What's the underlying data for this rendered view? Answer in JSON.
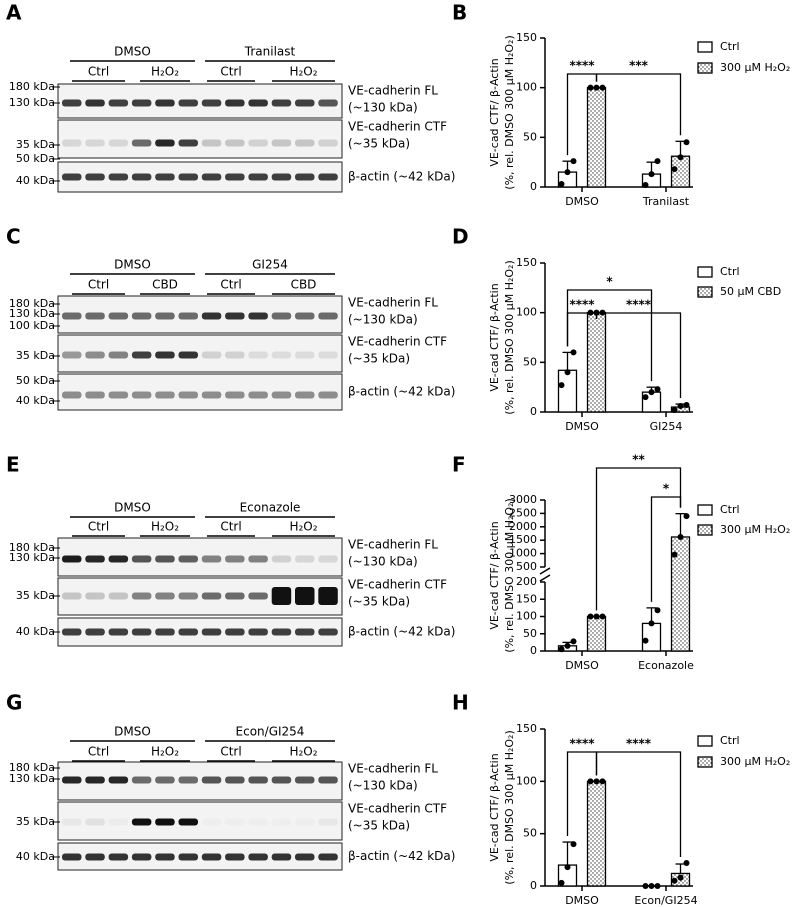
{
  "blots": [
    {
      "panel": "A",
      "groups": [
        "DMSO",
        "Tranilast"
      ],
      "subgroups": [
        "Ctrl",
        "H₂O₂",
        "Ctrl",
        "H₂O₂"
      ],
      "markers": [
        "180 kDa",
        "130 kDa",
        "35 kDa",
        "50 kDa",
        "40 kDa"
      ],
      "bands": [
        "VE-cadherin FL",
        "(~130 kDa)",
        "VE-cadherin CTF",
        "(~35 kDa)",
        "β-actin (~42 kDa)"
      ]
    },
    {
      "panel": "C",
      "groups": [
        "DMSO",
        "GI254"
      ],
      "subgroups": [
        "Ctrl",
        "CBD",
        "Ctrl",
        "CBD"
      ],
      "markers": [
        "180 kDa",
        "130 kDa",
        "100 kDa",
        "35 kDa",
        "50 kDa",
        "40 kDa"
      ],
      "bands": [
        "VE-cadherin FL",
        "(~130 kDa)",
        "VE-cadherin CTF",
        "(~35 kDa)",
        "β-actin (~42 kDa)"
      ]
    },
    {
      "panel": "E",
      "groups": [
        "DMSO",
        "Econazole"
      ],
      "subgroups": [
        "Ctrl",
        "H₂O₂",
        "Ctrl",
        "H₂O₂"
      ],
      "markers": [
        "180 kDa",
        "130 kDa",
        "35 kDa",
        "40 kDa"
      ],
      "bands": [
        "VE-cadherin FL",
        "(~130 kDa)",
        "VE-cadherin CTF",
        "(~35 kDa)",
        "β-actin (~42 kDa)"
      ]
    },
    {
      "panel": "G",
      "groups": [
        "DMSO",
        "Econ/GI254"
      ],
      "subgroups": [
        "Ctrl",
        "H₂O₂",
        "Ctrl",
        "H₂O₂"
      ],
      "markers": [
        "180 kDa",
        "130 kDa",
        "35 kDa",
        "40 kDa"
      ],
      "bands": [
        "VE-cadherin FL",
        "(~130 kDa)",
        "VE-cadherin CTF",
        "(~35 kDa)",
        "β-actin (~42 kDa)"
      ]
    }
  ],
  "chart_data": [
    {
      "type": "bar",
      "panel": "B",
      "y_label": [
        "VE-cad CTF/ β-Actin",
        "(%, rel. DMSO 300 μM H₂O₂)"
      ],
      "categories": [
        "DMSO",
        "Tranilast"
      ],
      "ylim": [
        0,
        150
      ],
      "yticks": [
        0,
        50,
        100,
        150
      ],
      "legend": "right",
      "series": [
        {
          "name": "Ctrl",
          "color": "#ffffff",
          "values": [
            15,
            13
          ],
          "errors": [
            11,
            12
          ],
          "points": [
            [
              3,
              15,
              26
            ],
            [
              2,
              13,
              26
            ]
          ]
        },
        {
          "name": "300 μM H₂O₂",
          "color": "#ffffff",
          "hatch": "dots",
          "values": [
            100,
            31
          ],
          "errors": [
            0,
            15
          ],
          "points": [
            [
              100,
              100,
              100
            ],
            [
              18,
              30,
              45
            ]
          ]
        }
      ],
      "annotations": [
        {
          "text": "****",
          "from": [
            0,
            0
          ],
          "to": [
            0,
            1
          ]
        },
        {
          "text": "***",
          "from": [
            0,
            1
          ],
          "to": [
            1,
            1
          ]
        }
      ]
    },
    {
      "type": "bar",
      "panel": "D",
      "y_label": [
        "VE-cad CTF/ β-Actin",
        "(%, rel. DMSO 300 μM H₂O₂)"
      ],
      "categories": [
        "DMSO",
        "GI254"
      ],
      "ylim": [
        0,
        150
      ],
      "yticks": [
        0,
        50,
        100,
        150
      ],
      "legend": "right",
      "series": [
        {
          "name": "Ctrl",
          "color": "#ffffff",
          "values": [
            42,
            20
          ],
          "errors": [
            18,
            5
          ],
          "points": [
            [
              27,
              40,
              60
            ],
            [
              15,
              20,
              23
            ]
          ]
        },
        {
          "name": "50 μM CBD",
          "color": "#ffffff",
          "hatch": "dots",
          "values": [
            100,
            5
          ],
          "errors": [
            0,
            3
          ],
          "points": [
            [
              100,
              100,
              100
            ],
            [
              2,
              6,
              7
            ]
          ]
        }
      ],
      "annotations": [
        {
          "text": "*",
          "from": [
            0,
            0
          ],
          "to": [
            1,
            0
          ]
        },
        {
          "text": "****",
          "from": [
            0,
            0
          ],
          "to": [
            0,
            1
          ]
        },
        {
          "text": "****",
          "from": [
            0,
            1
          ],
          "to": [
            1,
            1
          ]
        }
      ]
    },
    {
      "type": "bar",
      "panel": "F",
      "y_label": [
        "VE-cad CTF/ β-Actin",
        "(%, rel. DMSO 300 μM H₂O₂)"
      ],
      "categories": [
        "DMSO",
        "Econazole"
      ],
      "ylim": [
        0,
        3000
      ],
      "ybreak": [
        200,
        500
      ],
      "yticks": [
        0,
        50,
        100,
        150,
        200,
        500,
        1000,
        1500,
        2000,
        2500,
        3000
      ],
      "legend": "right",
      "series": [
        {
          "name": "Ctrl",
          "color": "#ffffff",
          "values": [
            15,
            80
          ],
          "errors": [
            10,
            45
          ],
          "points": [
            [
              5,
              15,
              28
            ],
            [
              30,
              80,
              118
            ]
          ]
        },
        {
          "name": "300 μM H₂O₂",
          "color": "#ffffff",
          "hatch": "dots",
          "values": [
            100,
            1620
          ],
          "errors": [
            0,
            870
          ],
          "points": [
            [
              100,
              100,
              100
            ],
            [
              960,
              1620,
              2400
            ]
          ]
        }
      ],
      "annotations": [
        {
          "text": "**",
          "from": [
            0,
            1
          ],
          "to": [
            1,
            1
          ]
        },
        {
          "text": "*",
          "from": [
            1,
            0
          ],
          "to": [
            1,
            1
          ]
        }
      ]
    },
    {
      "type": "bar",
      "panel": "H",
      "y_label": [
        "VE-cad CTF/ β-Actin",
        "(%, rel. DMSO 300 μM H₂O₂)"
      ],
      "categories": [
        "DMSO",
        "Econ/GI254"
      ],
      "ylim": [
        0,
        150
      ],
      "yticks": [
        0,
        50,
        100,
        150
      ],
      "legend": "right",
      "series": [
        {
          "name": "Ctrl",
          "color": "#ffffff",
          "values": [
            20,
            0
          ],
          "errors": [
            22,
            0
          ],
          "points": [
            [
              3,
              18,
              40
            ],
            [
              0,
              0,
              0
            ]
          ]
        },
        {
          "name": "300 μM H₂O₂",
          "color": "#ffffff",
          "hatch": "dots",
          "values": [
            100,
            12
          ],
          "errors": [
            0,
            9
          ],
          "points": [
            [
              100,
              100,
              100
            ],
            [
              5,
              8,
              22
            ]
          ]
        }
      ],
      "annotations": [
        {
          "text": "****",
          "from": [
            0,
            0
          ],
          "to": [
            0,
            1
          ]
        },
        {
          "text": "****",
          "from": [
            0,
            1
          ],
          "to": [
            1,
            1
          ]
        }
      ]
    }
  ]
}
